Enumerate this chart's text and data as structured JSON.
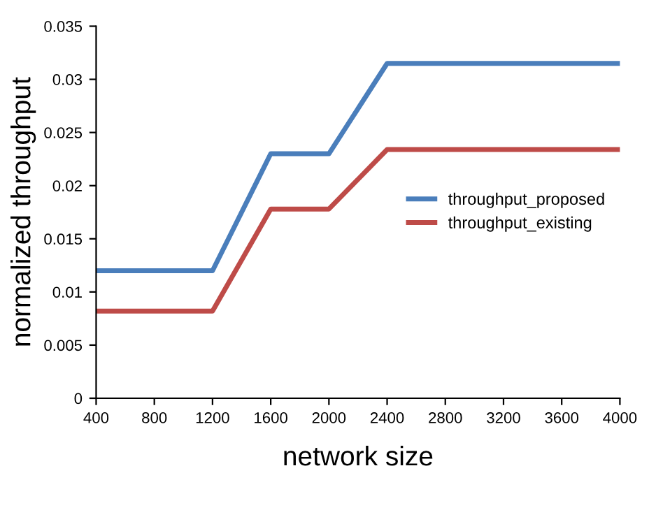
{
  "chart_data": {
    "type": "line",
    "xlabel": "network size",
    "ylabel": "normalized throughput",
    "x": [
      400,
      800,
      1200,
      1600,
      2000,
      2400,
      2800,
      3200,
      3600,
      4000
    ],
    "series": [
      {
        "name": "throughput_proposed",
        "color": "#4a7ebb",
        "values": [
          0.012,
          0.012,
          0.012,
          0.023,
          0.023,
          0.0315,
          0.0315,
          0.0315,
          0.0315,
          0.0315
        ]
      },
      {
        "name": "throughput_existing",
        "color": "#be4b48",
        "values": [
          0.0082,
          0.0082,
          0.0082,
          0.0178,
          0.0178,
          0.0234,
          0.0234,
          0.0234,
          0.0234,
          0.0234
        ]
      }
    ],
    "xlim": [
      400,
      4000
    ],
    "xticks": [
      400,
      800,
      1200,
      1600,
      2000,
      2400,
      2800,
      3200,
      3600,
      4000
    ],
    "ylim": [
      0,
      0.035
    ],
    "yticks": [
      0,
      0.005,
      0.01,
      0.015,
      0.02,
      0.025,
      0.03,
      0.035
    ],
    "grid": false,
    "legend": "center right",
    "marker": "none",
    "line_style": "solid"
  }
}
